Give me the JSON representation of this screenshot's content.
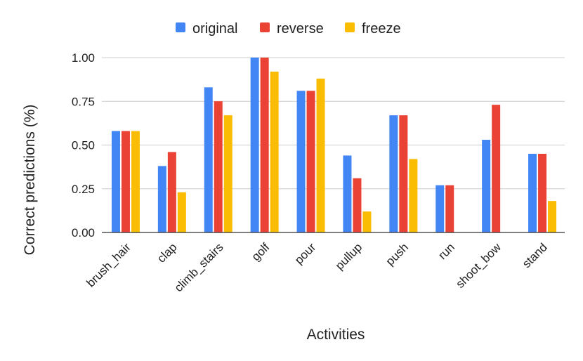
{
  "chart_data": {
    "type": "bar",
    "title": "",
    "xlabel": "Activities",
    "ylabel": "Correct predictions (%)",
    "ylim": [
      0,
      1
    ],
    "yticks": [
      "0.00",
      "0.25",
      "0.50",
      "0.75",
      "1.00"
    ],
    "ytick_values": [
      0,
      0.25,
      0.5,
      0.75,
      1
    ],
    "grid": true,
    "legend_position": "top",
    "categories": [
      "brush_hair",
      "clap",
      "climb_stairs",
      "golf",
      "pour",
      "pullup",
      "push",
      "run",
      "shoot_bow",
      "stand"
    ],
    "series": [
      {
        "name": "original",
        "color": "#4285F4",
        "values": [
          0.58,
          0.38,
          0.83,
          1.0,
          0.81,
          0.44,
          0.67,
          0.27,
          0.53,
          0.45
        ]
      },
      {
        "name": "reverse",
        "color": "#EA4335",
        "values": [
          0.58,
          0.46,
          0.75,
          1.0,
          0.81,
          0.31,
          0.67,
          0.27,
          0.73,
          0.45
        ]
      },
      {
        "name": "freeze",
        "color": "#FBBC04",
        "values": [
          0.58,
          0.23,
          0.67,
          0.92,
          0.88,
          0.12,
          0.42,
          0.0,
          0.0,
          0.18
        ]
      }
    ]
  }
}
